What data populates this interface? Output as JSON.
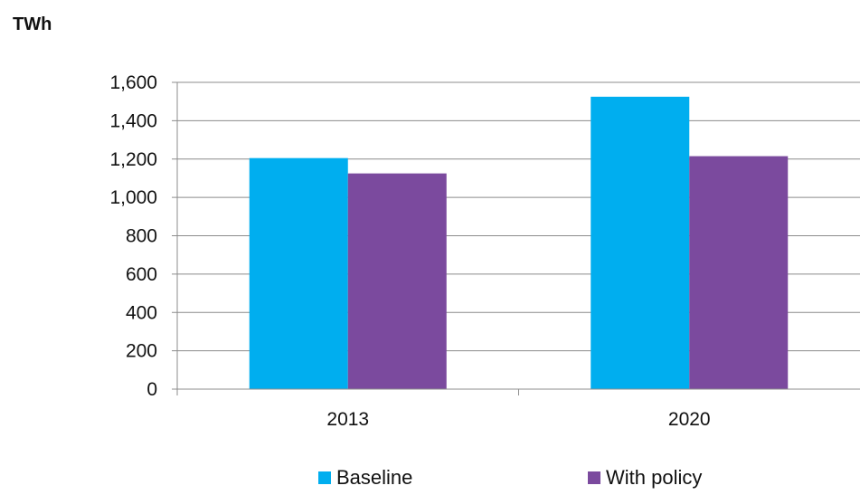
{
  "chart_data": {
    "type": "bar",
    "title": "",
    "ylabel": "TWh",
    "xlabel": "",
    "categories": [
      "2013",
      "2020"
    ],
    "series": [
      {
        "name": "Baseline",
        "values": [
          1205,
          1525
        ],
        "color": "#00AEEF"
      },
      {
        "name": "With policy",
        "values": [
          1125,
          1215
        ],
        "color": "#7B4A9E"
      }
    ],
    "ylim": [
      0,
      1600
    ],
    "yticks": [
      0,
      200,
      400,
      600,
      800,
      1000,
      1200,
      1400,
      1600
    ],
    "ytick_labels": [
      "0",
      "200",
      "400",
      "600",
      "800",
      "1,000",
      "1,200",
      "1,400",
      "1,600"
    ],
    "grid": true,
    "legend_position": "bottom"
  }
}
